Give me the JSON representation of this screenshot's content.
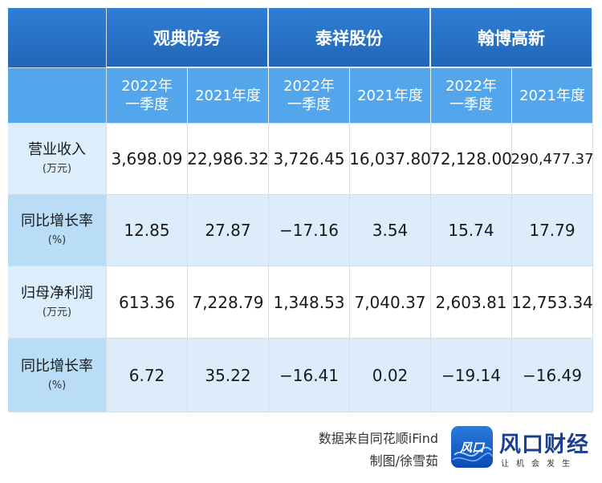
{
  "table": {
    "companies": [
      "观典防务",
      "泰祥股份",
      "翰博高新"
    ],
    "periods": [
      "2022年\n一季度",
      "2021年度",
      "2022年\n一季度",
      "2021年度",
      "2022年\n一季度",
      "2021年度"
    ],
    "rows": [
      {
        "label": "营业收入",
        "unit": "(万元)",
        "values": [
          "3,698.09",
          "22,986.32",
          "3,726.45",
          "16,037.80",
          "72,128.00",
          "290,477.37"
        ]
      },
      {
        "label": "同比增长率",
        "unit": "(%)",
        "values": [
          "12.85",
          "27.87",
          "−17.16",
          "3.54",
          "15.74",
          "17.79"
        ]
      },
      {
        "label": "归母净利润",
        "unit": "(万元)",
        "values": [
          "613.36",
          "7,228.79",
          "1,348.53",
          "7,040.37",
          "2,603.81",
          "12,753.34"
        ]
      },
      {
        "label": "同比增长率",
        "unit": "(%)",
        "values": [
          "6.72",
          "35.22",
          "−16.41",
          "0.02",
          "−19.14",
          "−16.49"
        ]
      }
    ]
  },
  "footer": {
    "source": "数据来自同花顺iFind",
    "credit": "制图/徐雪茹"
  },
  "brand": {
    "logo_mark": "风口",
    "name": "风口财经",
    "slogan": "让机会发生"
  },
  "colors": {
    "header_dark": "#2266b8",
    "header_light": "#53a6ec",
    "row_alt": "#dcecfa",
    "brand": "#1a3f8f"
  }
}
